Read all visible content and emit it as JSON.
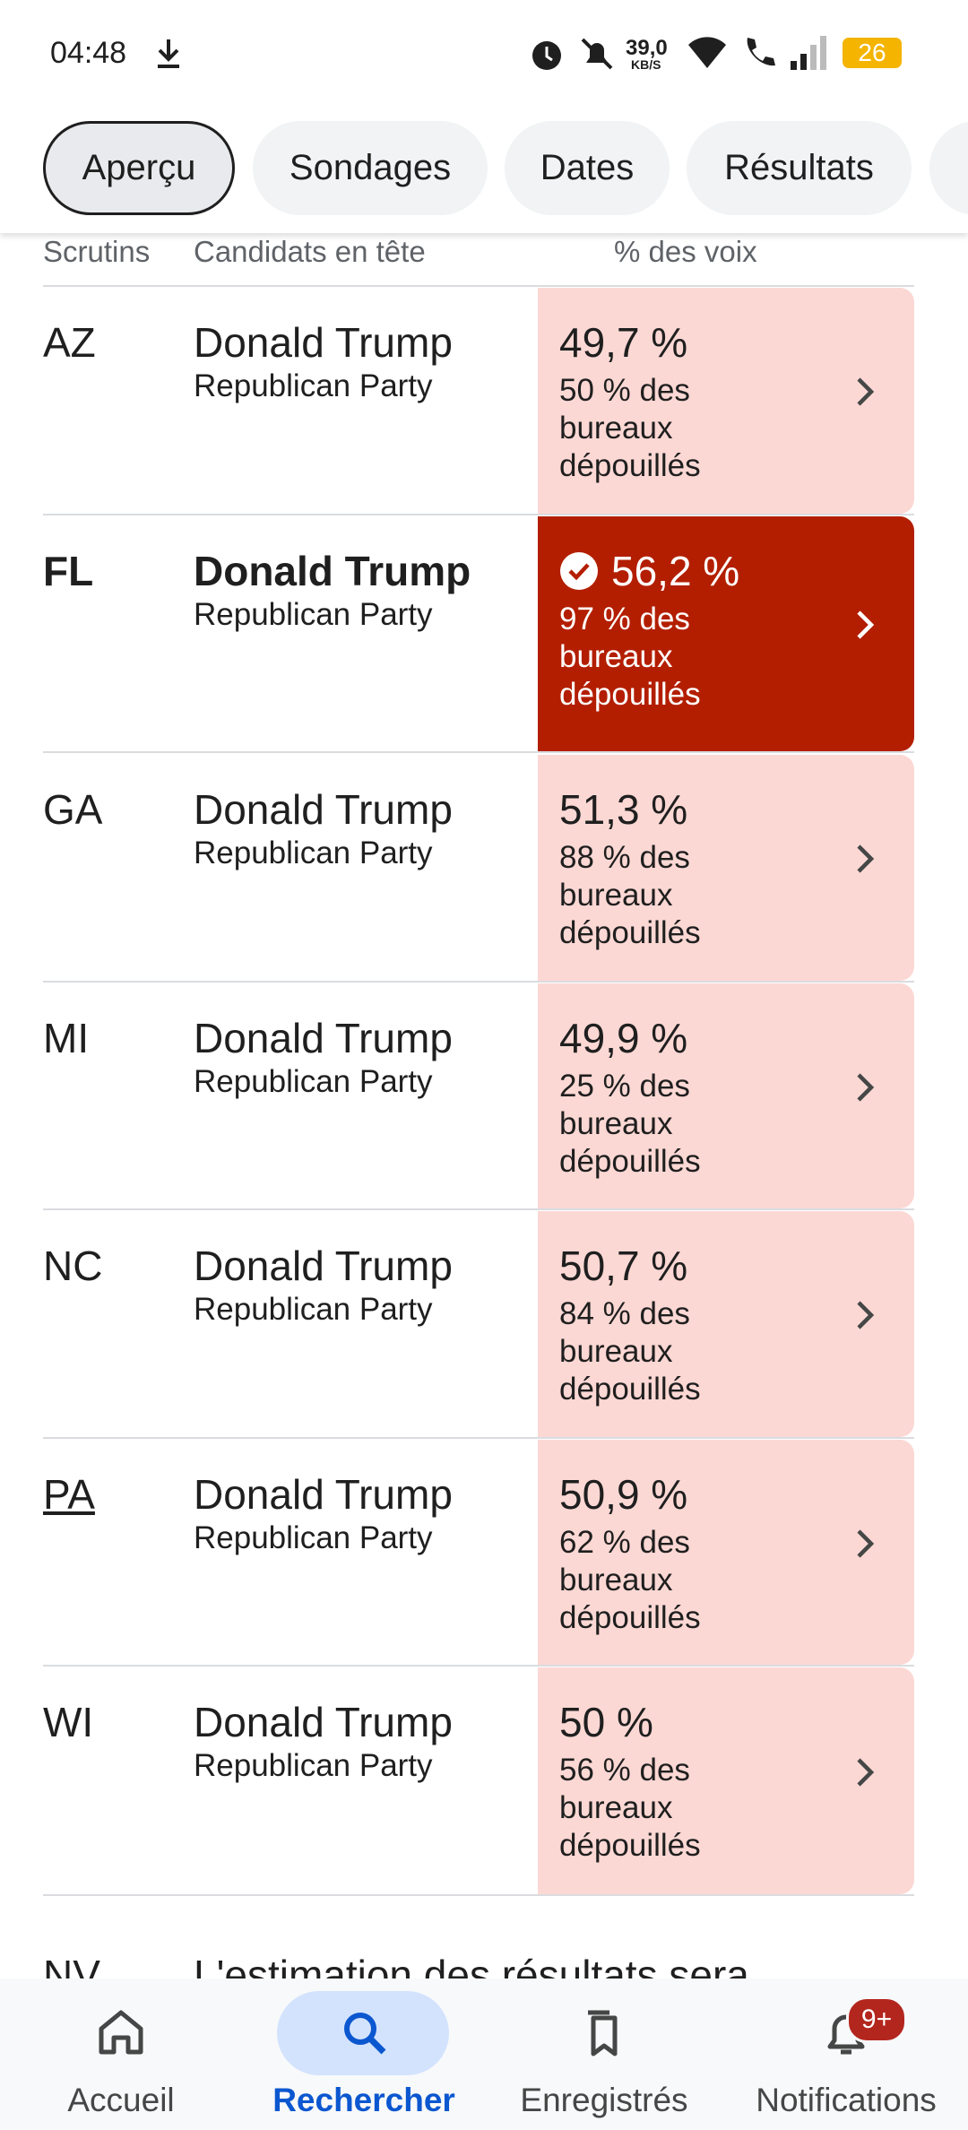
{
  "status_bar": {
    "time": "04:48",
    "speed": "39,0",
    "speed_unit": "KB/S",
    "battery": "26"
  },
  "tabs": [
    "Aperçu",
    "Sondages",
    "Dates",
    "Résultats"
  ],
  "table": {
    "headers": [
      "Scrutins",
      "Candidats en tête",
      "% des voix"
    ],
    "rows": [
      {
        "state": "AZ",
        "candidate": "Donald Trump",
        "party": "Republican Party",
        "percent": "49,7 %",
        "reporting": "50 % des bureaux dépouillés"
      },
      {
        "state": "FL",
        "candidate": "Donald Trump",
        "party": "Republican Party",
        "percent": "56,2 %",
        "reporting": "97 % des bureaux dépouillés",
        "winner": true
      },
      {
        "state": "GA",
        "candidate": "Donald Trump",
        "party": "Republican Party",
        "percent": "51,3 %",
        "reporting": "88 % des bureaux dépouillés"
      },
      {
        "state": "MI",
        "candidate": "Donald Trump",
        "party": "Republican Party",
        "percent": "49,9 %",
        "reporting": "25 % des bureaux dépouillés"
      },
      {
        "state": "NC",
        "candidate": "Donald Trump",
        "party": "Republican Party",
        "percent": "50,7 %",
        "reporting": "84 % des bureaux dépouillés"
      },
      {
        "state": "PA",
        "candidate": "Donald Trump",
        "party": "Republican Party",
        "percent": "50,9 %",
        "reporting": "62 % des bureaux dépouillés",
        "underlined": true
      },
      {
        "state": "WI",
        "candidate": "Donald Trump",
        "party": "Republican Party",
        "percent": "50 %",
        "reporting": "56 % des bureaux dépouillés"
      }
    ],
    "partial_row": {
      "state": "NV",
      "text": "L'estimation des résultats sera"
    }
  },
  "nav": {
    "items": [
      "Accueil",
      "Rechercher",
      "Enregistrés",
      "Notifications"
    ],
    "badge": "9+"
  }
}
